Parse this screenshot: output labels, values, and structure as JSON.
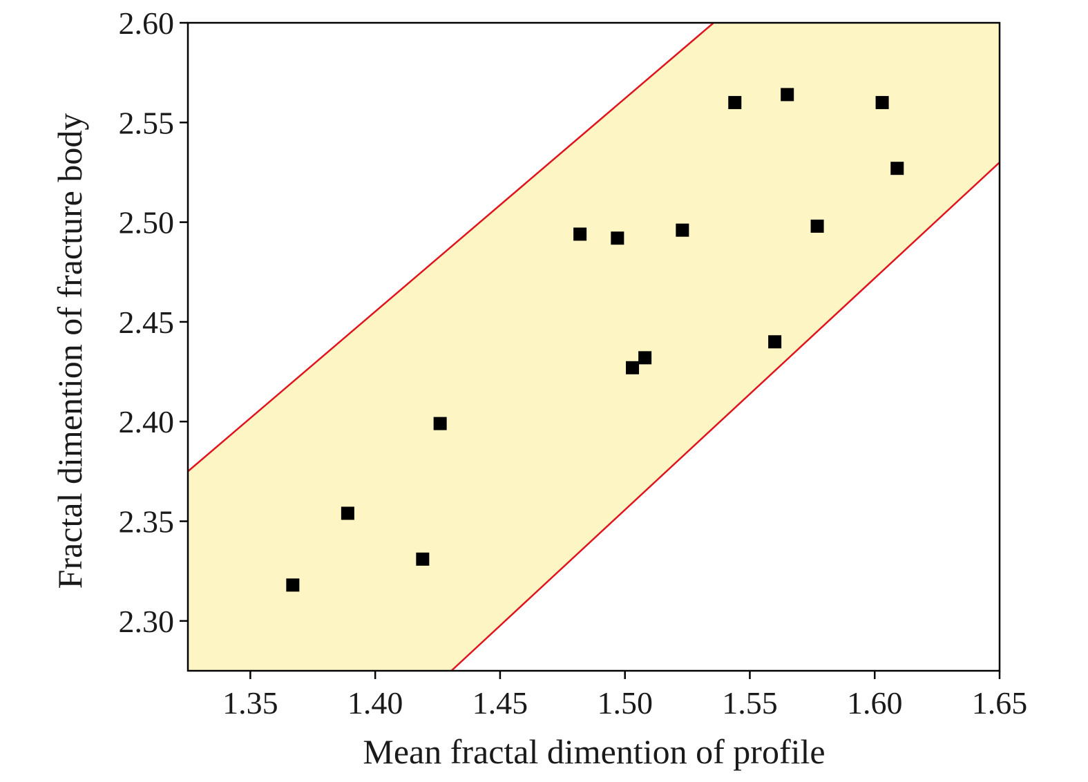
{
  "chart_data": {
    "type": "scatter",
    "title": "",
    "xlabel": "Mean fractal dimention of profile",
    "ylabel": "Fractal dimention of fracture body",
    "xlim": [
      1.325,
      1.65
    ],
    "ylim": [
      2.275,
      2.6
    ],
    "xticks": [
      "1.35",
      "1.40",
      "1.45",
      "1.50",
      "1.55",
      "1.60",
      "1.65"
    ],
    "yticks": [
      "2.30",
      "2.35",
      "2.40",
      "2.45",
      "2.50",
      "2.55",
      "2.60"
    ],
    "grid": false,
    "legend": "none",
    "points": [
      {
        "x": 1.367,
        "y": 2.318
      },
      {
        "x": 1.389,
        "y": 2.354
      },
      {
        "x": 1.419,
        "y": 2.331
      },
      {
        "x": 1.426,
        "y": 2.399
      },
      {
        "x": 1.482,
        "y": 2.494
      },
      {
        "x": 1.497,
        "y": 2.492
      },
      {
        "x": 1.503,
        "y": 2.427
      },
      {
        "x": 1.508,
        "y": 2.432
      },
      {
        "x": 1.523,
        "y": 2.496
      },
      {
        "x": 1.544,
        "y": 2.56
      },
      {
        "x": 1.56,
        "y": 2.44
      },
      {
        "x": 1.565,
        "y": 2.564
      },
      {
        "x": 1.577,
        "y": 2.498
      },
      {
        "x": 1.603,
        "y": 2.56
      },
      {
        "x": 1.609,
        "y": 2.527
      }
    ],
    "band": {
      "upper_line": [
        [
          1.325,
          2.375
        ],
        [
          1.5355,
          2.6
        ]
      ],
      "lower_line": [
        [
          1.4305,
          2.275
        ],
        [
          1.65,
          2.53
        ]
      ]
    },
    "colors": {
      "band_fill": "#fdf5c4",
      "bound_lines": "#e0141e",
      "markers": "#000000"
    }
  }
}
